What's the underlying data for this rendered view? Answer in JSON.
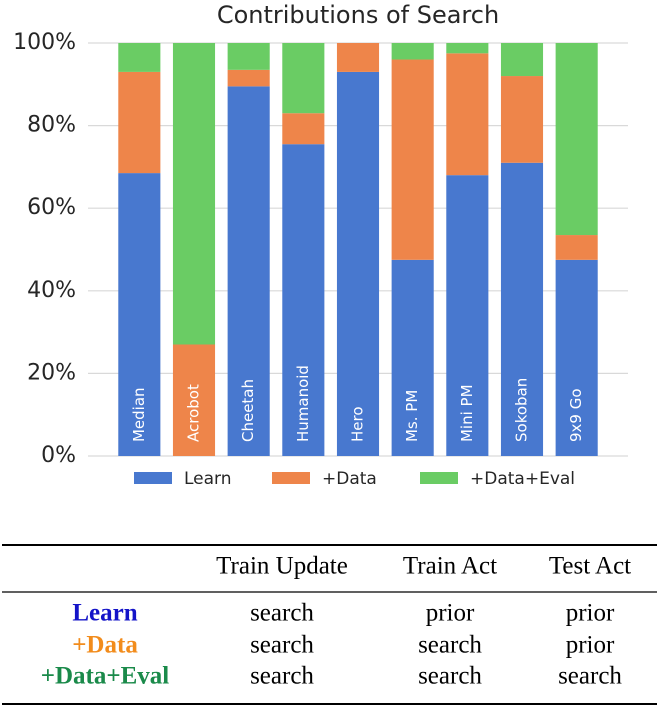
{
  "chart_data": {
    "type": "stacked_bar",
    "title": "Contributions of Search",
    "categories": [
      "Median",
      "Acrobot",
      "Cheetah",
      "Humanoid",
      "Hero",
      "Ms. PM",
      "Mini PM",
      "Sokoban",
      "9x9 Go"
    ],
    "series": [
      {
        "name": "Learn",
        "color": "#4878cf",
        "values": [
          68.5,
          0,
          89.5,
          75.5,
          93,
          47.5,
          68,
          71,
          47.5
        ]
      },
      {
        "name": "+Data",
        "color": "#ee854a",
        "values": [
          24.5,
          27,
          4,
          7.5,
          7,
          48.5,
          29.5,
          21,
          6
        ]
      },
      {
        "name": "+Data+Eval",
        "color": "#6acc64",
        "values": [
          7,
          73,
          6.5,
          17,
          0,
          4,
          2.5,
          8,
          46.5
        ]
      }
    ],
    "ylim": [
      0,
      100
    ],
    "yticks": [
      {
        "value": 0,
        "label": "0%"
      },
      {
        "value": 20,
        "label": "20%"
      },
      {
        "value": 40,
        "label": "40%"
      },
      {
        "value": 60,
        "label": "60%"
      },
      {
        "value": 80,
        "label": "80%"
      },
      {
        "value": 100,
        "label": "100%"
      }
    ],
    "grid": true,
    "legend": "bottom"
  },
  "table": {
    "columns": [
      "Train Update",
      "Train Act",
      "Test Act"
    ],
    "rows": [
      {
        "label": "Learn",
        "cells": [
          "search",
          "prior",
          "prior"
        ]
      },
      {
        "label": "+Data",
        "cells": [
          "search",
          "search",
          "prior"
        ]
      },
      {
        "label": "+Data+Eval",
        "cells": [
          "search",
          "search",
          "search"
        ]
      }
    ]
  }
}
